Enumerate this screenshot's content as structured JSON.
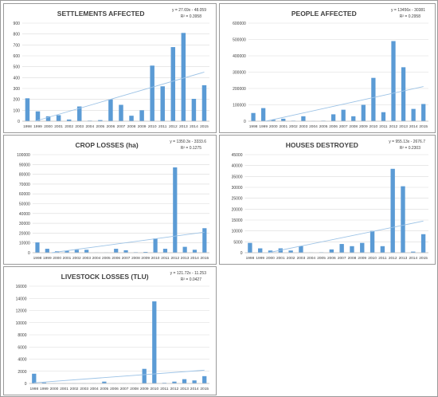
{
  "chart_data": [
    {
      "type": "bar",
      "title": "SETTLEMENTS AFFECTED",
      "equation": "y = 27.69x - 48.059",
      "r2": "R² = 0.3958",
      "categories": [
        "1998",
        "1999",
        "2000",
        "2001",
        "2002",
        "2003",
        "2004",
        "2005",
        "2006",
        "2007",
        "2008",
        "2009",
        "2010",
        "2011",
        "2012",
        "2013",
        "2014",
        "2015"
      ],
      "values": [
        210,
        90,
        45,
        55,
        15,
        135,
        5,
        10,
        200,
        150,
        50,
        100,
        510,
        320,
        680,
        810,
        205,
        330
      ],
      "trend": {
        "slope": 27.69,
        "intercept": -48.059
      },
      "ylim": [
        0,
        900
      ],
      "yticks": [
        0,
        100,
        200,
        300,
        400,
        500,
        600,
        700,
        800,
        900
      ],
      "grid": true,
      "color": "#5b9bd5"
    },
    {
      "type": "bar",
      "title": "PEOPLE AFFECTED",
      "equation": "y = 13456x - 30381",
      "r2": "R² = 0.2958",
      "categories": [
        "1998",
        "1999",
        "2000",
        "2001",
        "2002",
        "2003",
        "2004",
        "2005",
        "2006",
        "2007",
        "2008",
        "2009",
        "2010",
        "2011",
        "2012",
        "2013",
        "2014",
        "2015"
      ],
      "values": [
        50000,
        80000,
        8000,
        15000,
        3000,
        30000,
        1000,
        3000,
        42000,
        70000,
        30000,
        100000,
        265000,
        55000,
        490000,
        330000,
        75000,
        105000
      ],
      "trend": {
        "slope": 13456,
        "intercept": -30381
      },
      "ylim": [
        0,
        600000
      ],
      "yticks": [
        0,
        100000,
        200000,
        300000,
        400000,
        500000,
        600000
      ],
      "grid": true,
      "color": "#5b9bd5"
    },
    {
      "type": "bar",
      "title": "CROP LOSSES (ha)",
      "equation": "y = 1350.3x - 3333.6",
      "r2": "R² = 0.1275",
      "categories": [
        "1998",
        "1999",
        "2000",
        "2001",
        "2002",
        "2003",
        "2004",
        "2005",
        "2006",
        "2007",
        "2008",
        "2009",
        "2010",
        "2011",
        "2012",
        "2013",
        "2014",
        "2015"
      ],
      "values": [
        10500,
        4000,
        1500,
        2000,
        3000,
        3000,
        200,
        200,
        4000,
        2500,
        500,
        800,
        14500,
        4000,
        87000,
        6000,
        3000,
        25000
      ],
      "trend": {
        "slope": 1350.3,
        "intercept": -3333.6
      },
      "ylim": [
        0,
        100000
      ],
      "yticks": [
        0,
        10000,
        20000,
        30000,
        40000,
        50000,
        60000,
        70000,
        80000,
        90000,
        100000
      ],
      "grid": true,
      "color": "#5b9bd5"
    },
    {
      "type": "bar",
      "title": "HOUSES DESTROYED",
      "equation": "y = 955.13x - 2676.7",
      "r2": "R² = 0.2303",
      "categories": [
        "1998",
        "1999",
        "2000",
        "2001",
        "2002",
        "2003",
        "2004",
        "2005",
        "2006",
        "2007",
        "2008",
        "2009",
        "2010",
        "2011",
        "2012",
        "2013",
        "2014",
        "2015"
      ],
      "values": [
        4500,
        2000,
        1000,
        2000,
        1000,
        3000,
        100,
        200,
        1500,
        4000,
        3000,
        4500,
        10000,
        3000,
        38500,
        30500,
        500,
        8500
      ],
      "trend": {
        "slope": 955.13,
        "intercept": -2676.7
      },
      "ylim": [
        0,
        45000
      ],
      "yticks": [
        0,
        5000,
        10000,
        15000,
        20000,
        25000,
        30000,
        35000,
        40000,
        45000
      ],
      "grid": true,
      "color": "#5b9bd5"
    },
    {
      "type": "bar",
      "title": "LIVESTOCK LOSSES (TLU)",
      "equation": "y = 121.72x - 11.253",
      "r2": "R² = 0.0427",
      "categories": [
        "1998",
        "1999",
        "2000",
        "2001",
        "2002",
        "2003",
        "2004",
        "2005",
        "2006",
        "2007",
        "2008",
        "2009",
        "2010",
        "2011",
        "2012",
        "2013",
        "2014",
        "2015"
      ],
      "values": [
        1600,
        150,
        30,
        20,
        20,
        20,
        20,
        300,
        20,
        20,
        20,
        2400,
        13500,
        100,
        300,
        700,
        500,
        1200
      ],
      "trend": {
        "slope": 121.72,
        "intercept": -11.253
      },
      "ylim": [
        0,
        16000
      ],
      "yticks": [
        0,
        2000,
        4000,
        6000,
        8000,
        10000,
        12000,
        14000,
        16000
      ],
      "grid": true,
      "color": "#5b9bd5"
    }
  ]
}
